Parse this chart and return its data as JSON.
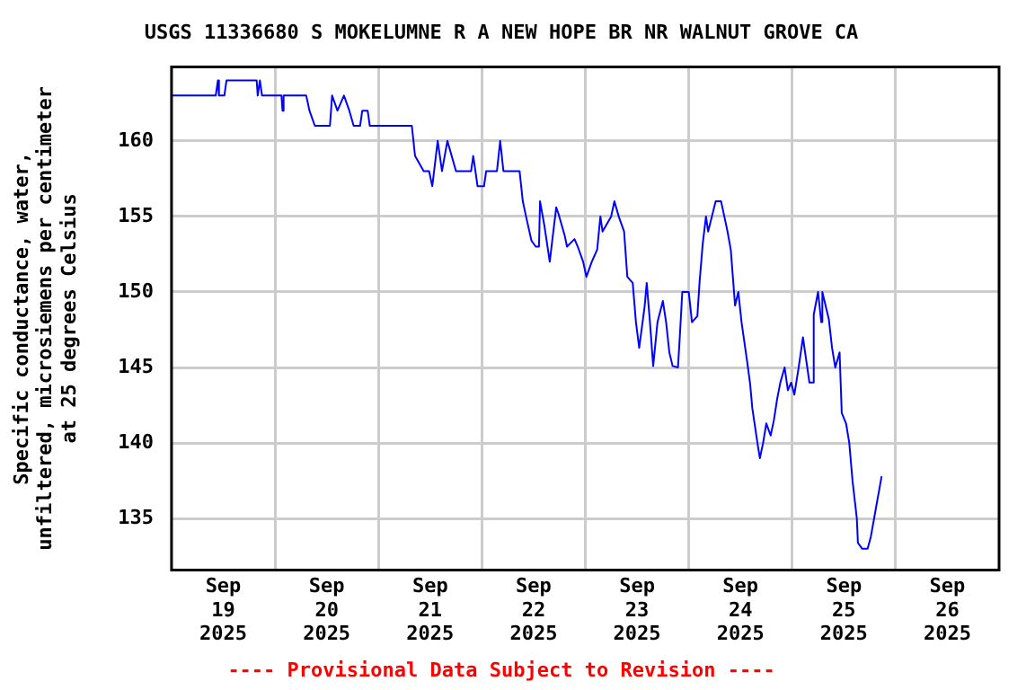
{
  "chart_data": {
    "type": "line",
    "title": "USGS 11336680 S MOKELUMNE R A NEW HOPE BR NR WALNUT GROVE CA",
    "ylabel": "Specific conductance, water,\nunfiltered, microsiemens per centimeter\nat 25 degrees Celsius",
    "annotations": [
      "---- Provisional Data Subject to Revision ----"
    ],
    "x": [
      "2025-09-19T00:00",
      "2025-09-19T10:15",
      "2025-09-19T10:45",
      "2025-09-19T11:00",
      "2025-09-19T12:15",
      "2025-09-19T12:45",
      "2025-09-19T19:45",
      "2025-09-19T20:00",
      "2025-09-19T20:30",
      "2025-09-19T21:00",
      "2025-09-20T01:30",
      "2025-09-20T01:45",
      "2025-09-20T02:00",
      "2025-09-20T07:15",
      "2025-09-20T08:00",
      "2025-09-20T09:15",
      "2025-09-20T12:45",
      "2025-09-20T13:15",
      "2025-09-20T14:30",
      "2025-09-20T16:00",
      "2025-09-20T17:15",
      "2025-09-20T18:15",
      "2025-09-20T19:45",
      "2025-09-20T20:15",
      "2025-09-20T21:30",
      "2025-09-20T22:00",
      "2025-09-21T07:45",
      "2025-09-21T08:30",
      "2025-09-21T10:30",
      "2025-09-21T11:45",
      "2025-09-21T12:30",
      "2025-09-21T13:45",
      "2025-09-21T14:45",
      "2025-09-21T16:00",
      "2025-09-21T17:00",
      "2025-09-21T18:00",
      "2025-09-21T21:30",
      "2025-09-21T22:00",
      "2025-09-21T22:30",
      "2025-09-21T23:00",
      "2025-09-22T00:30",
      "2025-09-22T01:00",
      "2025-09-22T03:30",
      "2025-09-22T04:15",
      "2025-09-22T05:00",
      "2025-09-22T08:45",
      "2025-09-22T09:30",
      "2025-09-22T10:15",
      "2025-09-22T11:30",
      "2025-09-22T12:30",
      "2025-09-22T13:15",
      "2025-09-22T13:30",
      "2025-09-22T14:30",
      "2025-09-22T15:45",
      "2025-09-22T17:15",
      "2025-09-22T17:45",
      "2025-09-22T19:15",
      "2025-09-22T19:45",
      "2025-09-22T21:30",
      "2025-09-22T22:15",
      "2025-09-22T23:30",
      "2025-09-23T00:15",
      "2025-09-23T01:30",
      "2025-09-23T02:45",
      "2025-09-23T03:30",
      "2025-09-23T04:00",
      "2025-09-23T06:00",
      "2025-09-23T06:45",
      "2025-09-23T07:45",
      "2025-09-23T09:00",
      "2025-09-23T09:45",
      "2025-09-23T11:00",
      "2025-09-23T11:45",
      "2025-09-23T12:30",
      "2025-09-23T13:45",
      "2025-09-23T14:15",
      "2025-09-23T15:00",
      "2025-09-23T15:45",
      "2025-09-23T16:45",
      "2025-09-23T18:00",
      "2025-09-23T18:45",
      "2025-09-23T19:30",
      "2025-09-23T20:15",
      "2025-09-23T21:30",
      "2025-09-23T22:00",
      "2025-09-23T22:30",
      "2025-09-24T00:00",
      "2025-09-24T00:45",
      "2025-09-24T02:00",
      "2025-09-24T02:30",
      "2025-09-24T03:15",
      "2025-09-24T04:00",
      "2025-09-24T04:30",
      "2025-09-24T06:15",
      "2025-09-24T07:30",
      "2025-09-24T08:15",
      "2025-09-24T09:00",
      "2025-09-24T09:45",
      "2025-09-24T10:45",
      "2025-09-24T11:30",
      "2025-09-24T12:15",
      "2025-09-24T13:30",
      "2025-09-24T14:15",
      "2025-09-24T14:45",
      "2025-09-24T16:00",
      "2025-09-24T16:30",
      "2025-09-24T17:15",
      "2025-09-24T18:00",
      "2025-09-24T19:00",
      "2025-09-24T19:45",
      "2025-09-24T20:30",
      "2025-09-24T21:15",
      "2025-09-24T22:15",
      "2025-09-24T23:00",
      "2025-09-24T23:45",
      "2025-09-25T00:30",
      "2025-09-25T01:30",
      "2025-09-25T02:30",
      "2025-09-25T03:00",
      "2025-09-25T04:00",
      "2025-09-25T04:45",
      "2025-09-25T05:00",
      "2025-09-25T06:00",
      "2025-09-25T06:45",
      "2025-09-25T07:00",
      "2025-09-25T08:30",
      "2025-09-25T09:15",
      "2025-09-25T10:00",
      "2025-09-25T11:00",
      "2025-09-25T11:30",
      "2025-09-25T12:30",
      "2025-09-25T13:15",
      "2025-09-25T14:00",
      "2025-09-25T15:00",
      "2025-09-25T15:15",
      "2025-09-25T16:15",
      "2025-09-25T17:30",
      "2025-09-25T18:15",
      "2025-09-25T19:00",
      "2025-09-25T19:30",
      "2025-09-25T20:15",
      "2025-09-25T20:45"
    ],
    "series": [
      {
        "color": "#0000ff",
        "values": [
          163,
          163,
          164,
          163,
          163,
          164,
          164,
          163,
          164,
          163,
          163,
          162,
          163,
          163,
          162,
          161,
          161,
          163,
          162,
          163,
          162,
          161,
          161,
          162,
          162,
          161,
          161,
          159,
          158,
          158,
          157,
          160,
          158,
          160,
          159,
          158,
          158,
          159,
          158,
          157,
          157,
          158,
          158,
          160,
          158,
          158,
          156,
          155,
          153.4,
          153,
          153,
          156,
          154.4,
          152,
          155.6,
          155.2,
          153.7,
          153,
          153.5,
          153,
          152,
          151,
          152,
          152.8,
          155,
          154,
          155,
          156,
          155,
          154,
          151,
          150.6,
          148,
          146.3,
          149,
          150.6,
          148,
          145.1,
          148,
          149.4,
          148,
          146,
          145.1,
          145,
          147.4,
          150,
          150,
          148,
          148.4,
          150.6,
          153.2,
          155,
          154,
          156,
          156,
          155,
          154,
          152.8,
          149.1,
          150,
          148,
          145.5,
          143.9,
          142.3,
          139.9,
          139,
          140,
          141.3,
          140.5,
          141.5,
          142.9,
          144,
          145,
          143.5,
          144,
          143.2,
          145,
          147,
          146,
          144,
          144,
          148.5,
          150,
          148,
          150,
          148.2,
          146.3,
          145,
          146,
          142,
          141.3,
          140,
          137.5,
          135,
          133.4,
          133,
          133,
          133.8,
          135,
          135.8,
          137,
          137.8
        ]
      }
    ],
    "xlim": [
      "2025-09-19T00:00",
      "2025-09-27T00:00"
    ],
    "xticks": [
      {
        "value": "2025-09-19T12:00",
        "label": "Sep\n19\n2025"
      },
      {
        "value": "2025-09-20T00:00",
        "label": null
      },
      {
        "value": "2025-09-20T12:00",
        "label": "Sep\n20\n2025"
      },
      {
        "value": "2025-09-21T00:00",
        "label": null
      },
      {
        "value": "2025-09-21T12:00",
        "label": "Sep\n21\n2025"
      },
      {
        "value": "2025-09-22T00:00",
        "label": null
      },
      {
        "value": "2025-09-22T12:00",
        "label": "Sep\n22\n2025"
      },
      {
        "value": "2025-09-23T00:00",
        "label": null
      },
      {
        "value": "2025-09-23T12:00",
        "label": "Sep\n23\n2025"
      },
      {
        "value": "2025-09-24T00:00",
        "label": null
      },
      {
        "value": "2025-09-24T12:00",
        "label": "Sep\n24\n2025"
      },
      {
        "value": "2025-09-25T00:00",
        "label": null
      },
      {
        "value": "2025-09-25T12:00",
        "label": "Sep\n25\n2025"
      },
      {
        "value": "2025-09-26T00:00",
        "label": null
      },
      {
        "value": "2025-09-26T12:00",
        "label": "Sep\n26\n2025"
      }
    ],
    "ylim": [
      131.6,
      164.9
    ],
    "yticks": [
      135,
      140,
      145,
      150,
      155,
      160
    ],
    "grid": true,
    "legend": false
  }
}
